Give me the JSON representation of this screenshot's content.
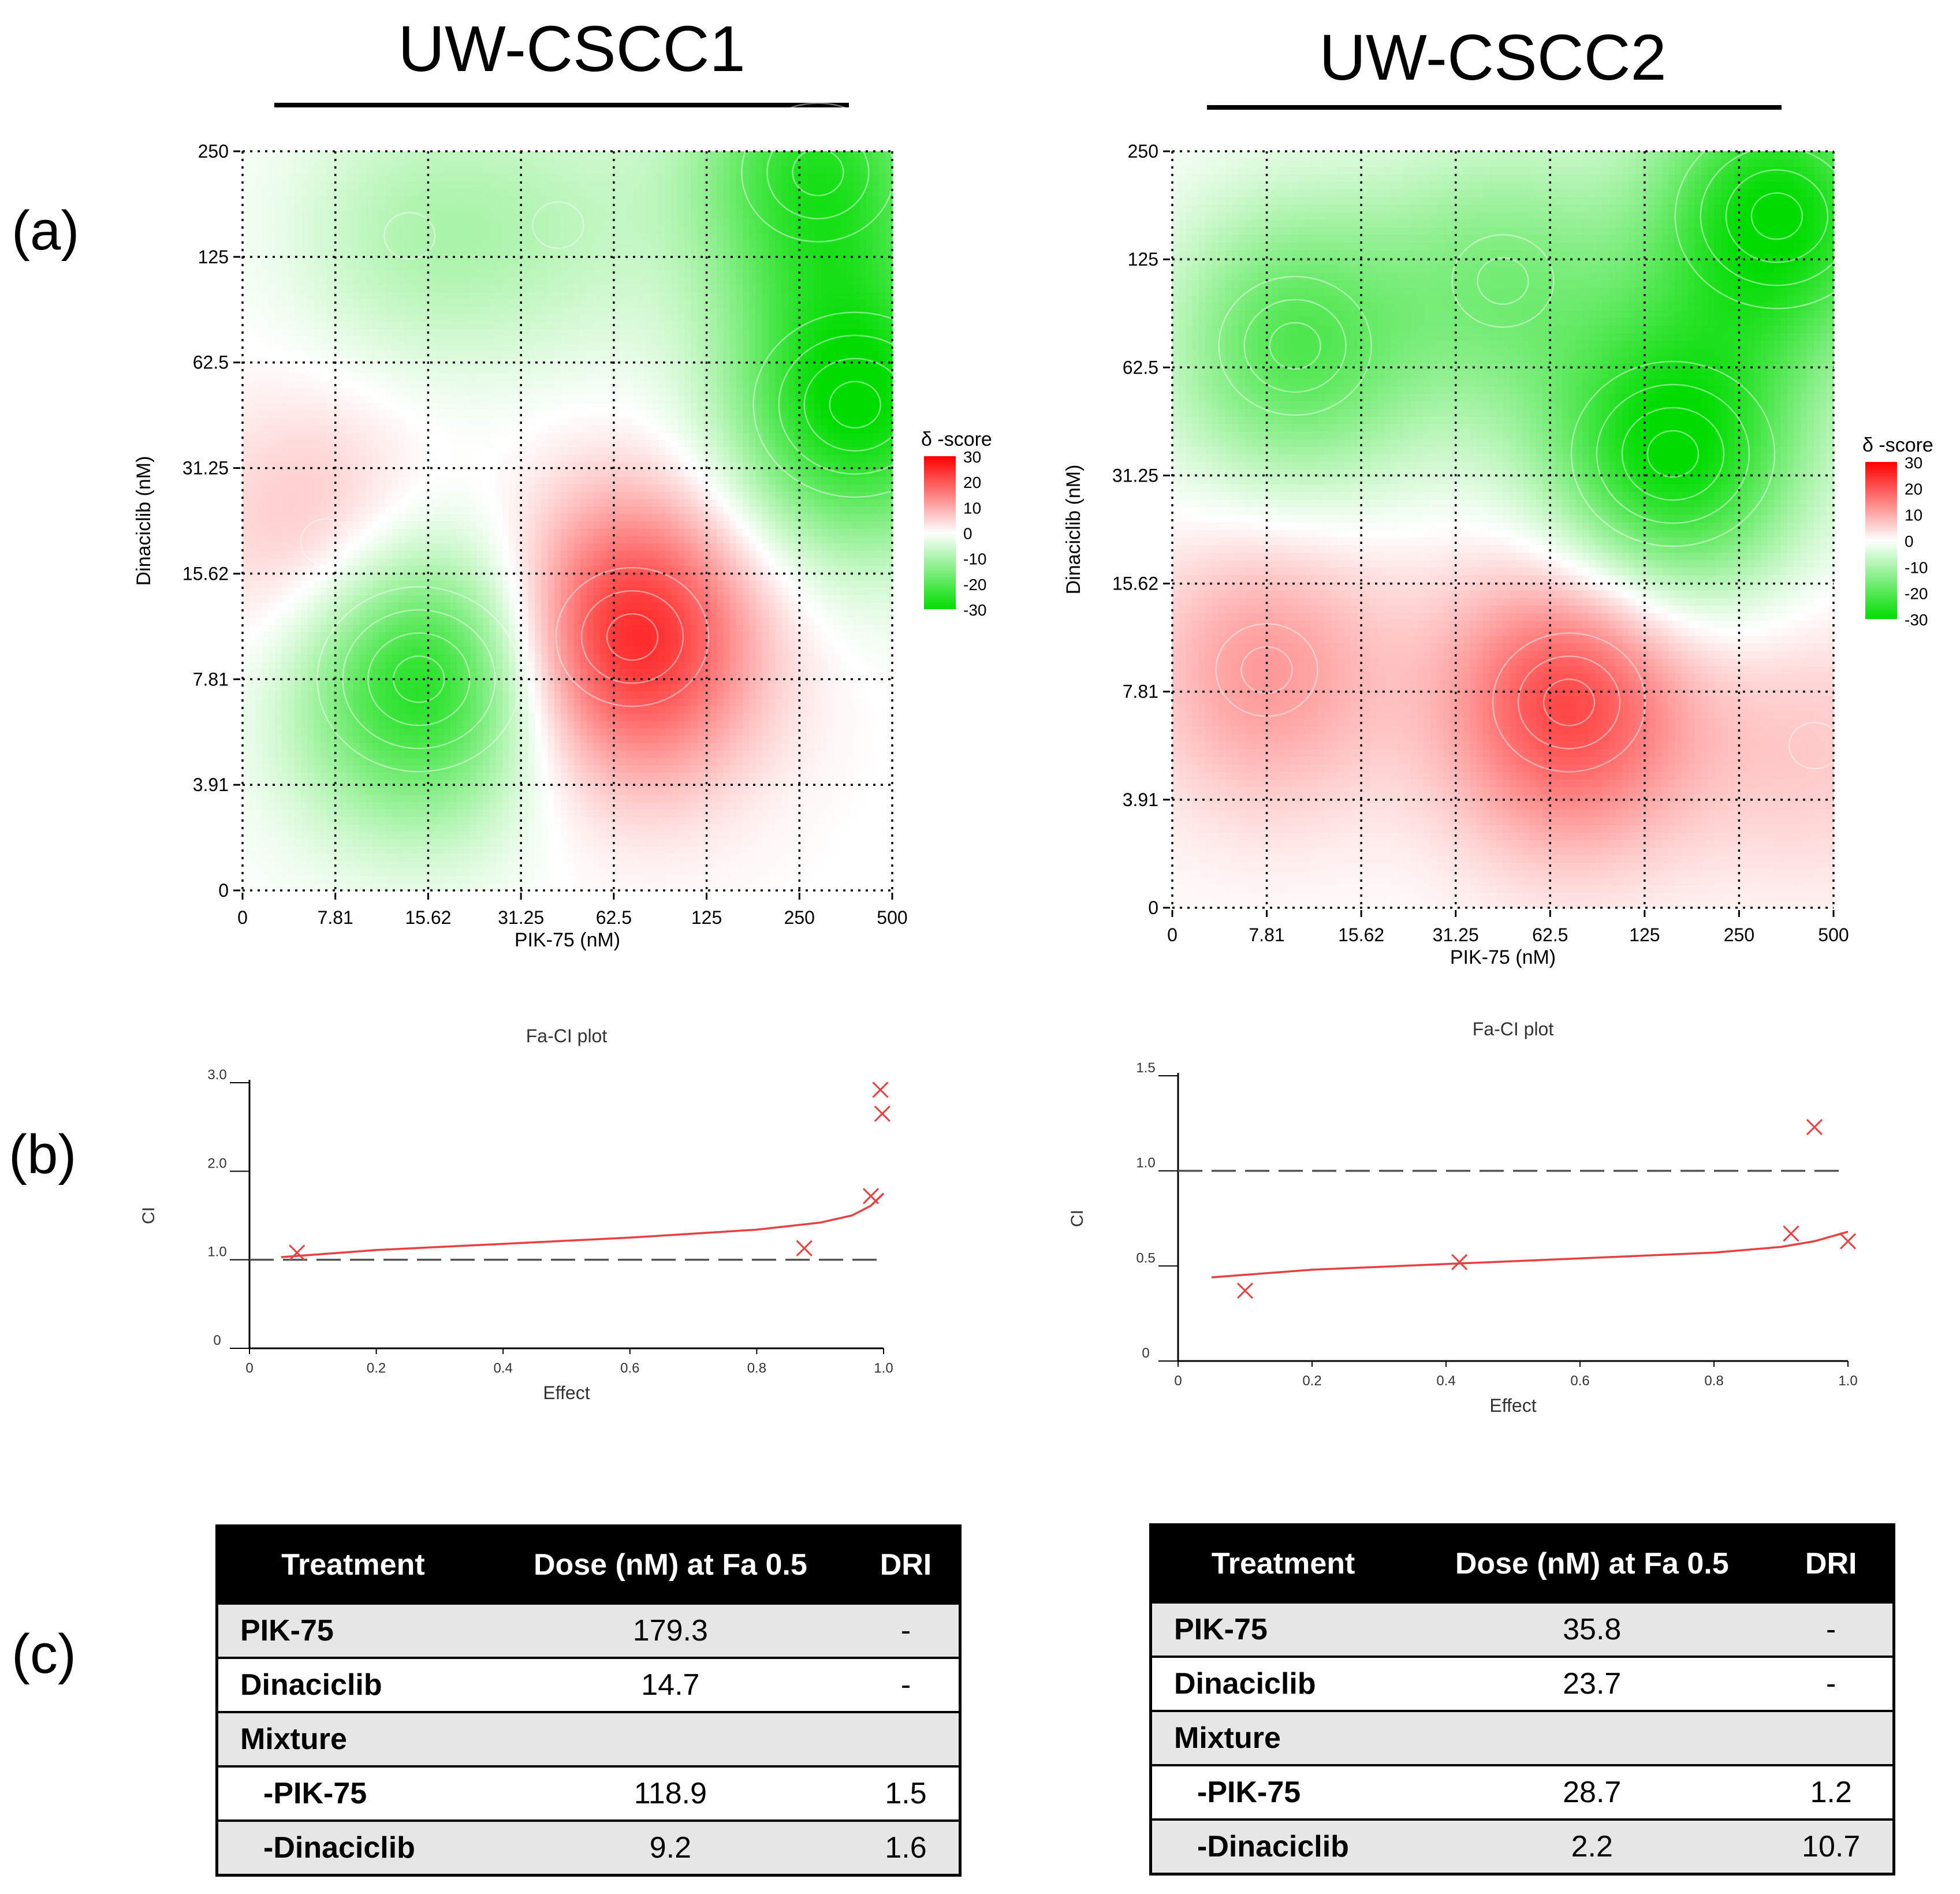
{
  "panel_labels": [
    "(a)",
    "(b)",
    "(c)"
  ],
  "columns": [
    {
      "title": "UW-CSCC1"
    },
    {
      "title": "UW-CSCC2"
    }
  ],
  "colors": {
    "synergy": "#ff0000",
    "antagonism": "#00dd00",
    "ci_curve": "#e84040",
    "dashed": "#555555"
  },
  "chart_data": [
    {
      "type": "heatmap",
      "panel": "a-left",
      "xlabel": "PIK-75 (nM)",
      "ylabel": "Dinaciclib (nM)",
      "x_ticks": [
        "0",
        "7.81",
        "15.62",
        "31.25",
        "62.5",
        "125",
        "250",
        "500"
      ],
      "y_ticks": [
        "0",
        "3.91",
        "7.81",
        "15.62",
        "31.25",
        "62.5",
        "125",
        "250"
      ],
      "legend_title": "δ -score",
      "legend_ticks": [
        "30",
        "20",
        "10",
        "0",
        "-10",
        "-20",
        "-30"
      ],
      "zlim": [
        -30,
        30
      ],
      "hotspots": [
        {
          "x_index": 1.9,
          "y_index": 2.0,
          "value": -28
        },
        {
          "x_index": 4.2,
          "y_index": 2.4,
          "value": 26
        },
        {
          "x_index": 0.9,
          "y_index": 3.3,
          "value": 9
        },
        {
          "x_index": 6.6,
          "y_index": 4.6,
          "value": -30
        },
        {
          "x_index": 6.2,
          "y_index": 6.8,
          "value": -25
        },
        {
          "x_index": 1.8,
          "y_index": 6.2,
          "value": -8
        },
        {
          "x_index": 3.4,
          "y_index": 6.3,
          "value": -6
        }
      ]
    },
    {
      "type": "heatmap",
      "panel": "a-right",
      "xlabel": "PIK-75 (nM)",
      "ylabel": "Dinaciclib (nM)",
      "x_ticks": [
        "0",
        "7.81",
        "15.62",
        "31.25",
        "62.5",
        "125",
        "250",
        "500"
      ],
      "y_ticks": [
        "0",
        "3.91",
        "7.81",
        "15.62",
        "31.25",
        "62.5",
        "125",
        "250"
      ],
      "legend_title": "δ -score",
      "legend_ticks": [
        "30",
        "20",
        "10",
        "0",
        "-10",
        "-20",
        "-30"
      ],
      "zlim": [
        -30,
        30
      ],
      "hotspots": [
        {
          "x_index": 4.2,
          "y_index": 1.9,
          "value": 22
        },
        {
          "x_index": 1.0,
          "y_index": 2.2,
          "value": 12
        },
        {
          "x_index": 6.8,
          "y_index": 1.5,
          "value": 6
        },
        {
          "x_index": 5.3,
          "y_index": 4.2,
          "value": -30
        },
        {
          "x_index": 6.4,
          "y_index": 6.4,
          "value": -30
        },
        {
          "x_index": 1.3,
          "y_index": 5.2,
          "value": -20
        },
        {
          "x_index": 3.5,
          "y_index": 5.8,
          "value": -14
        }
      ]
    },
    {
      "type": "scatter",
      "panel": "b-left",
      "title": "Fa-CI plot",
      "xlabel": "Effect",
      "ylabel": "CI",
      "xlim": [
        0,
        1.0
      ],
      "ylim": [
        0,
        3.0
      ],
      "x_ticks": [
        "0",
        "0.2",
        "0.4",
        "0.6",
        "0.8",
        "1.0"
      ],
      "y_ticks": [
        "0",
        "1.0",
        "2.0",
        "3.0"
      ],
      "reference_line": 1.0,
      "points": [
        {
          "x": 0.075,
          "y": 1.08
        },
        {
          "x": 0.875,
          "y": 1.13
        },
        {
          "x": 0.98,
          "y": 1.72
        },
        {
          "x": 0.995,
          "y": 2.92
        },
        {
          "x": 0.998,
          "y": 2.65
        }
      ],
      "curve": [
        [
          0.05,
          1.03
        ],
        [
          0.2,
          1.11
        ],
        [
          0.4,
          1.18
        ],
        [
          0.6,
          1.25
        ],
        [
          0.8,
          1.34
        ],
        [
          0.9,
          1.42
        ],
        [
          0.95,
          1.5
        ],
        [
          0.98,
          1.61
        ],
        [
          1.0,
          1.75
        ]
      ]
    },
    {
      "type": "scatter",
      "panel": "b-right",
      "title": "Fa-CI plot",
      "xlabel": "Effect",
      "ylabel": "CI",
      "xlim": [
        0,
        1.0
      ],
      "ylim": [
        0,
        1.5
      ],
      "x_ticks": [
        "0",
        "0.2",
        "0.4",
        "0.6",
        "0.8",
        "1.0"
      ],
      "y_ticks": [
        "0",
        "0.5",
        "1.0",
        "1.5"
      ],
      "reference_line": 1.0,
      "points": [
        {
          "x": 0.1,
          "y": 0.37
        },
        {
          "x": 0.42,
          "y": 0.52
        },
        {
          "x": 0.915,
          "y": 0.67
        },
        {
          "x": 0.95,
          "y": 1.23
        },
        {
          "x": 1.0,
          "y": 0.63
        }
      ],
      "curve": [
        [
          0.05,
          0.44
        ],
        [
          0.2,
          0.48
        ],
        [
          0.4,
          0.51
        ],
        [
          0.6,
          0.54
        ],
        [
          0.8,
          0.57
        ],
        [
          0.9,
          0.6
        ],
        [
          0.95,
          0.63
        ],
        [
          1.0,
          0.68
        ]
      ]
    },
    {
      "type": "table",
      "panel": "c-left",
      "headers": [
        "Treatment",
        "Dose (nM) at Fa 0.5",
        "DRI"
      ],
      "rows": [
        [
          "PIK-75",
          "179.3",
          "-"
        ],
        [
          "Dinaciclib",
          "14.7",
          "-"
        ],
        [
          "Mixture",
          "",
          ""
        ],
        [
          "-PIK-75",
          "118.9",
          "1.5"
        ],
        [
          "-Dinaciclib",
          "9.2",
          "1.6"
        ]
      ]
    },
    {
      "type": "table",
      "panel": "c-right",
      "headers": [
        "Treatment",
        "Dose (nM) at Fa 0.5",
        "DRI"
      ],
      "rows": [
        [
          "PIK-75",
          "35.8",
          "-"
        ],
        [
          "Dinaciclib",
          "23.7",
          "-"
        ],
        [
          "Mixture",
          "",
          ""
        ],
        [
          "-PIK-75",
          "28.7",
          "1.2"
        ],
        [
          "-Dinaciclib",
          "2.2",
          "10.7"
        ]
      ]
    }
  ]
}
